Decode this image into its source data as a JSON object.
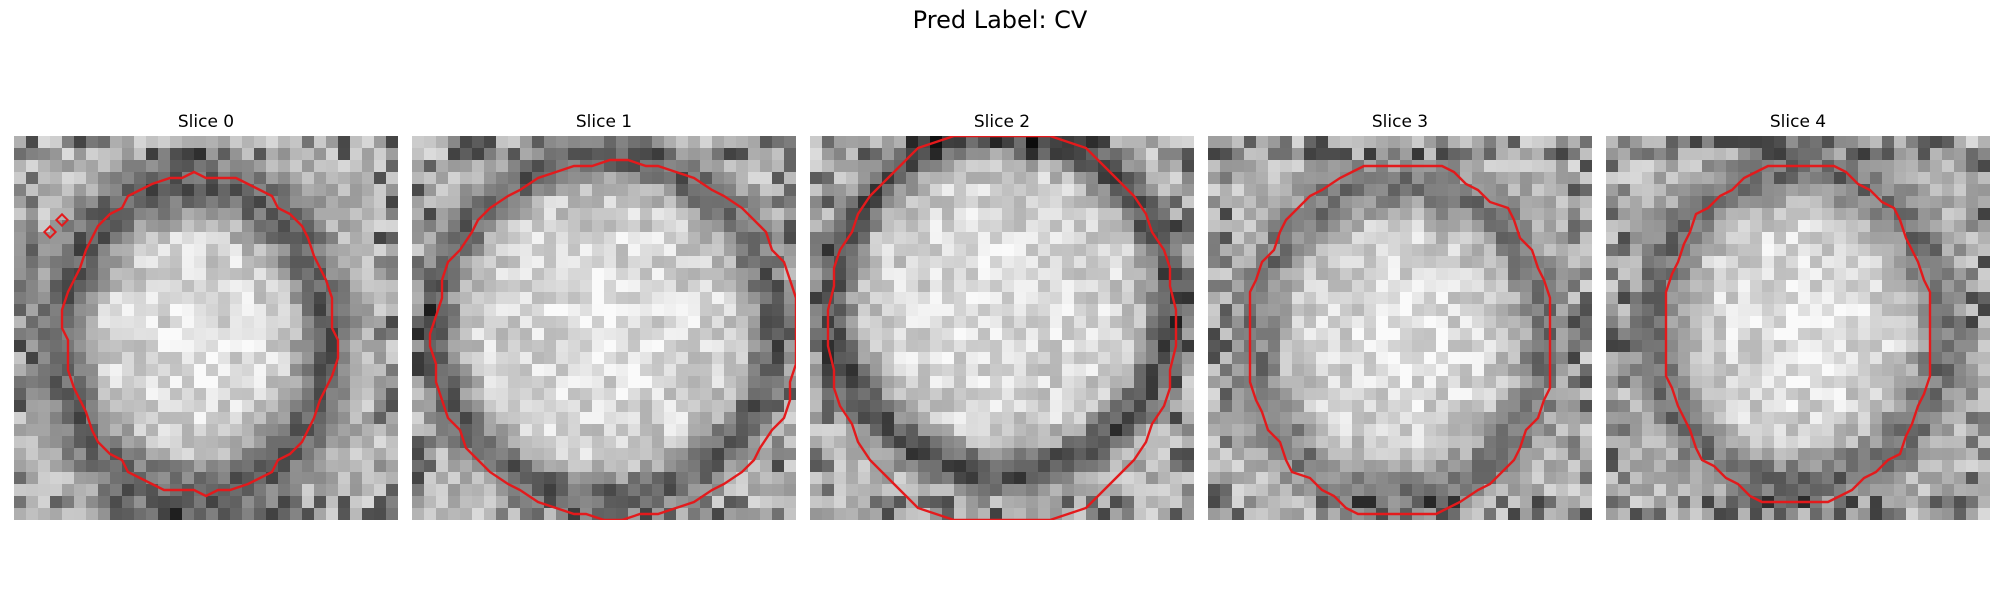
{
  "figure": {
    "title": "Pred Label: CV"
  },
  "panels": [
    {
      "title": "Slice 0",
      "seed": 11,
      "style": "ring-center"
    },
    {
      "title": "Slice 1",
      "seed": 23,
      "style": "ring-bright"
    },
    {
      "title": "Slice 2",
      "seed": 37,
      "style": "ring-dark-edges"
    },
    {
      "title": "Slice 3",
      "seed": 49,
      "style": "ring-faint"
    },
    {
      "title": "Slice 4",
      "seed": 61,
      "style": "ring-mottled"
    }
  ],
  "colors": {
    "contour": "#e31a1c",
    "background": "#ffffff"
  }
}
